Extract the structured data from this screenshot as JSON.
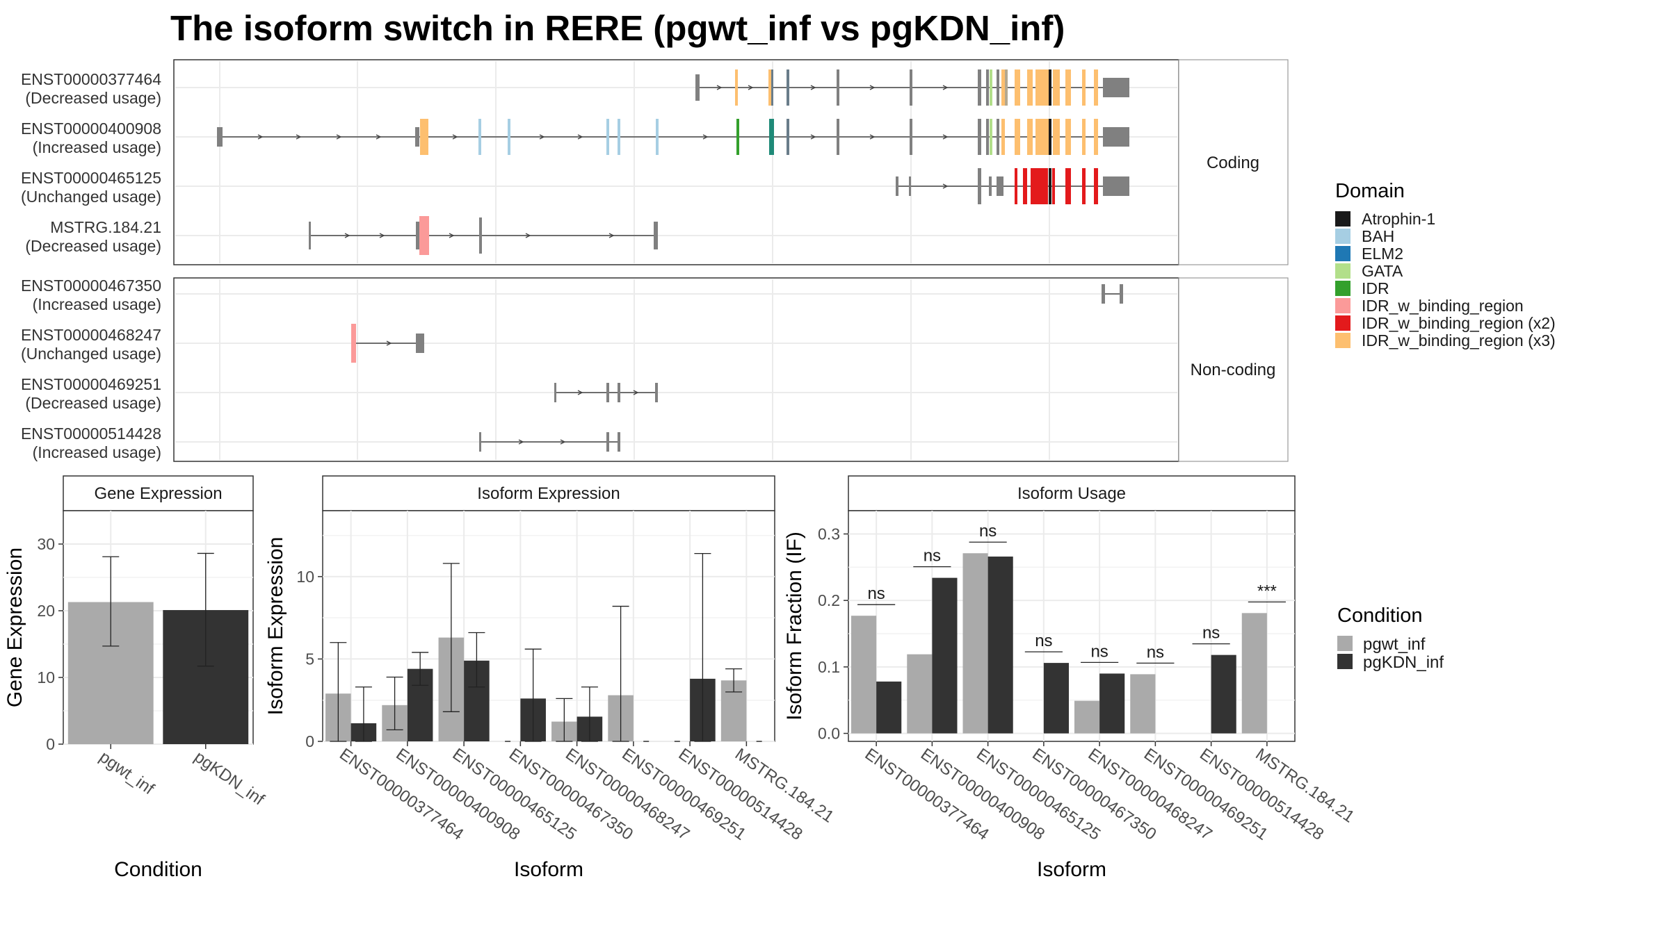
{
  "title": "The isoform switch in RERE (pgwt_inf vs pgKDN_inf)",
  "colors": {
    "pgwt_inf": "#aaaaaa",
    "pgKDN_inf": "#333333",
    "exon": "#808080",
    "Atrophin-1": "#1a1a1a",
    "BAH": "#a6cee3",
    "ELM2": "#1f78b4",
    "GATA": "#b2df8a",
    "IDR": "#33a02c",
    "IDR_w_binding_region": "#fb9a99",
    "IDR_w_binding_region (x2)": "#e31a1c",
    "IDR_w_binding_region (x3)": "#fdbf6f"
  },
  "structure": {
    "facets": [
      "Coding",
      "Non-coding"
    ],
    "coding": [
      {
        "id": "ENST00000377464",
        "usage": "(Decreased usage)"
      },
      {
        "id": "ENST00000400908",
        "usage": "(Increased usage)"
      },
      {
        "id": "ENST00000465125",
        "usage": "(Unchanged usage)"
      },
      {
        "id": "MSTRG.184.21",
        "usage": "(Decreased usage)"
      }
    ],
    "noncoding": [
      {
        "id": "ENST00000467350",
        "usage": "(Increased usage)"
      },
      {
        "id": "ENST00000468247",
        "usage": "(Unchanged usage)"
      },
      {
        "id": "ENST00000469251",
        "usage": "(Decreased usage)"
      },
      {
        "id": "ENST00000514428",
        "usage": "(Increased usage)"
      }
    ]
  },
  "legend_domain": {
    "title": "Domain",
    "items": [
      "Atrophin-1",
      "BAH",
      "ELM2",
      "GATA",
      "IDR",
      "IDR_w_binding_region",
      "IDR_w_binding_region (x2)",
      "IDR_w_binding_region (x3)"
    ]
  },
  "legend_condition": {
    "title": "Condition",
    "items": [
      "pgwt_inf",
      "pgKDN_inf"
    ]
  },
  "chart_data": [
    {
      "type": "bar",
      "title": "Gene Expression",
      "xlabel": "Condition",
      "ylabel": "Gene Expression",
      "categories": [
        "pgwt_inf",
        "pgKDN_inf"
      ],
      "values": [
        21.3,
        20.1
      ],
      "error_low": [
        14.7,
        11.7
      ],
      "error_high": [
        28.1,
        28.6
      ],
      "ylim": [
        0,
        35
      ],
      "yticks": [
        0,
        10,
        20,
        30
      ]
    },
    {
      "type": "bar",
      "title": "Isoform Expression",
      "xlabel": "Isoform",
      "ylabel": "Isoform Expression",
      "categories": [
        "ENST00000377464",
        "ENST00000400908",
        "ENST00000465125",
        "ENST00000467350",
        "ENST00000468247",
        "ENST00000469251",
        "ENST00000514428",
        "MSTRG.184.21"
      ],
      "series": [
        {
          "name": "pgwt_inf",
          "values": [
            2.9,
            2.2,
            6.3,
            0,
            1.2,
            2.8,
            0,
            3.7
          ],
          "error_low": [
            0,
            0.7,
            1.8,
            0,
            0,
            0,
            0,
            3.0
          ],
          "error_high": [
            6.0,
            3.9,
            10.8,
            0,
            2.6,
            8.2,
            0,
            4.4
          ]
        },
        {
          "name": "pgKDN_inf",
          "values": [
            1.1,
            4.4,
            4.9,
            2.6,
            1.5,
            0,
            3.8,
            0
          ],
          "error_low": [
            0,
            3.4,
            3.3,
            0,
            0,
            0,
            0,
            0
          ],
          "error_high": [
            3.3,
            5.4,
            6.6,
            5.6,
            3.3,
            0,
            11.4,
            0
          ]
        }
      ],
      "ylim": [
        0,
        14
      ],
      "yticks": [
        0,
        5,
        10
      ]
    },
    {
      "type": "bar",
      "title": "Isoform Usage",
      "xlabel": "Isoform",
      "ylabel": "Isoform Fraction (IF)",
      "categories": [
        "ENST00000377464",
        "ENST00000400908",
        "ENST00000465125",
        "ENST00000467350",
        "ENST00000468247",
        "ENST00000469251",
        "ENST00000514428",
        "MSTRG.184.21"
      ],
      "series": [
        {
          "name": "pgwt_inf",
          "values": [
            0.177,
            0.119,
            0.271,
            0,
            0.049,
            0.089,
            0,
            0.181
          ]
        },
        {
          "name": "pgKDN_inf",
          "values": [
            0.078,
            0.234,
            0.266,
            0.106,
            0.09,
            0,
            0.118,
            0
          ]
        }
      ],
      "significance": [
        "ns",
        "ns",
        "ns",
        "ns",
        "ns",
        "ns",
        "ns",
        "***"
      ],
      "ylim": [
        -0.012,
        0.335
      ],
      "yticks": [
        0.0,
        0.1,
        0.2,
        0.3
      ],
      "ytick_labels": [
        "0.0",
        "0.1",
        "0.2",
        "0.3"
      ]
    }
  ]
}
